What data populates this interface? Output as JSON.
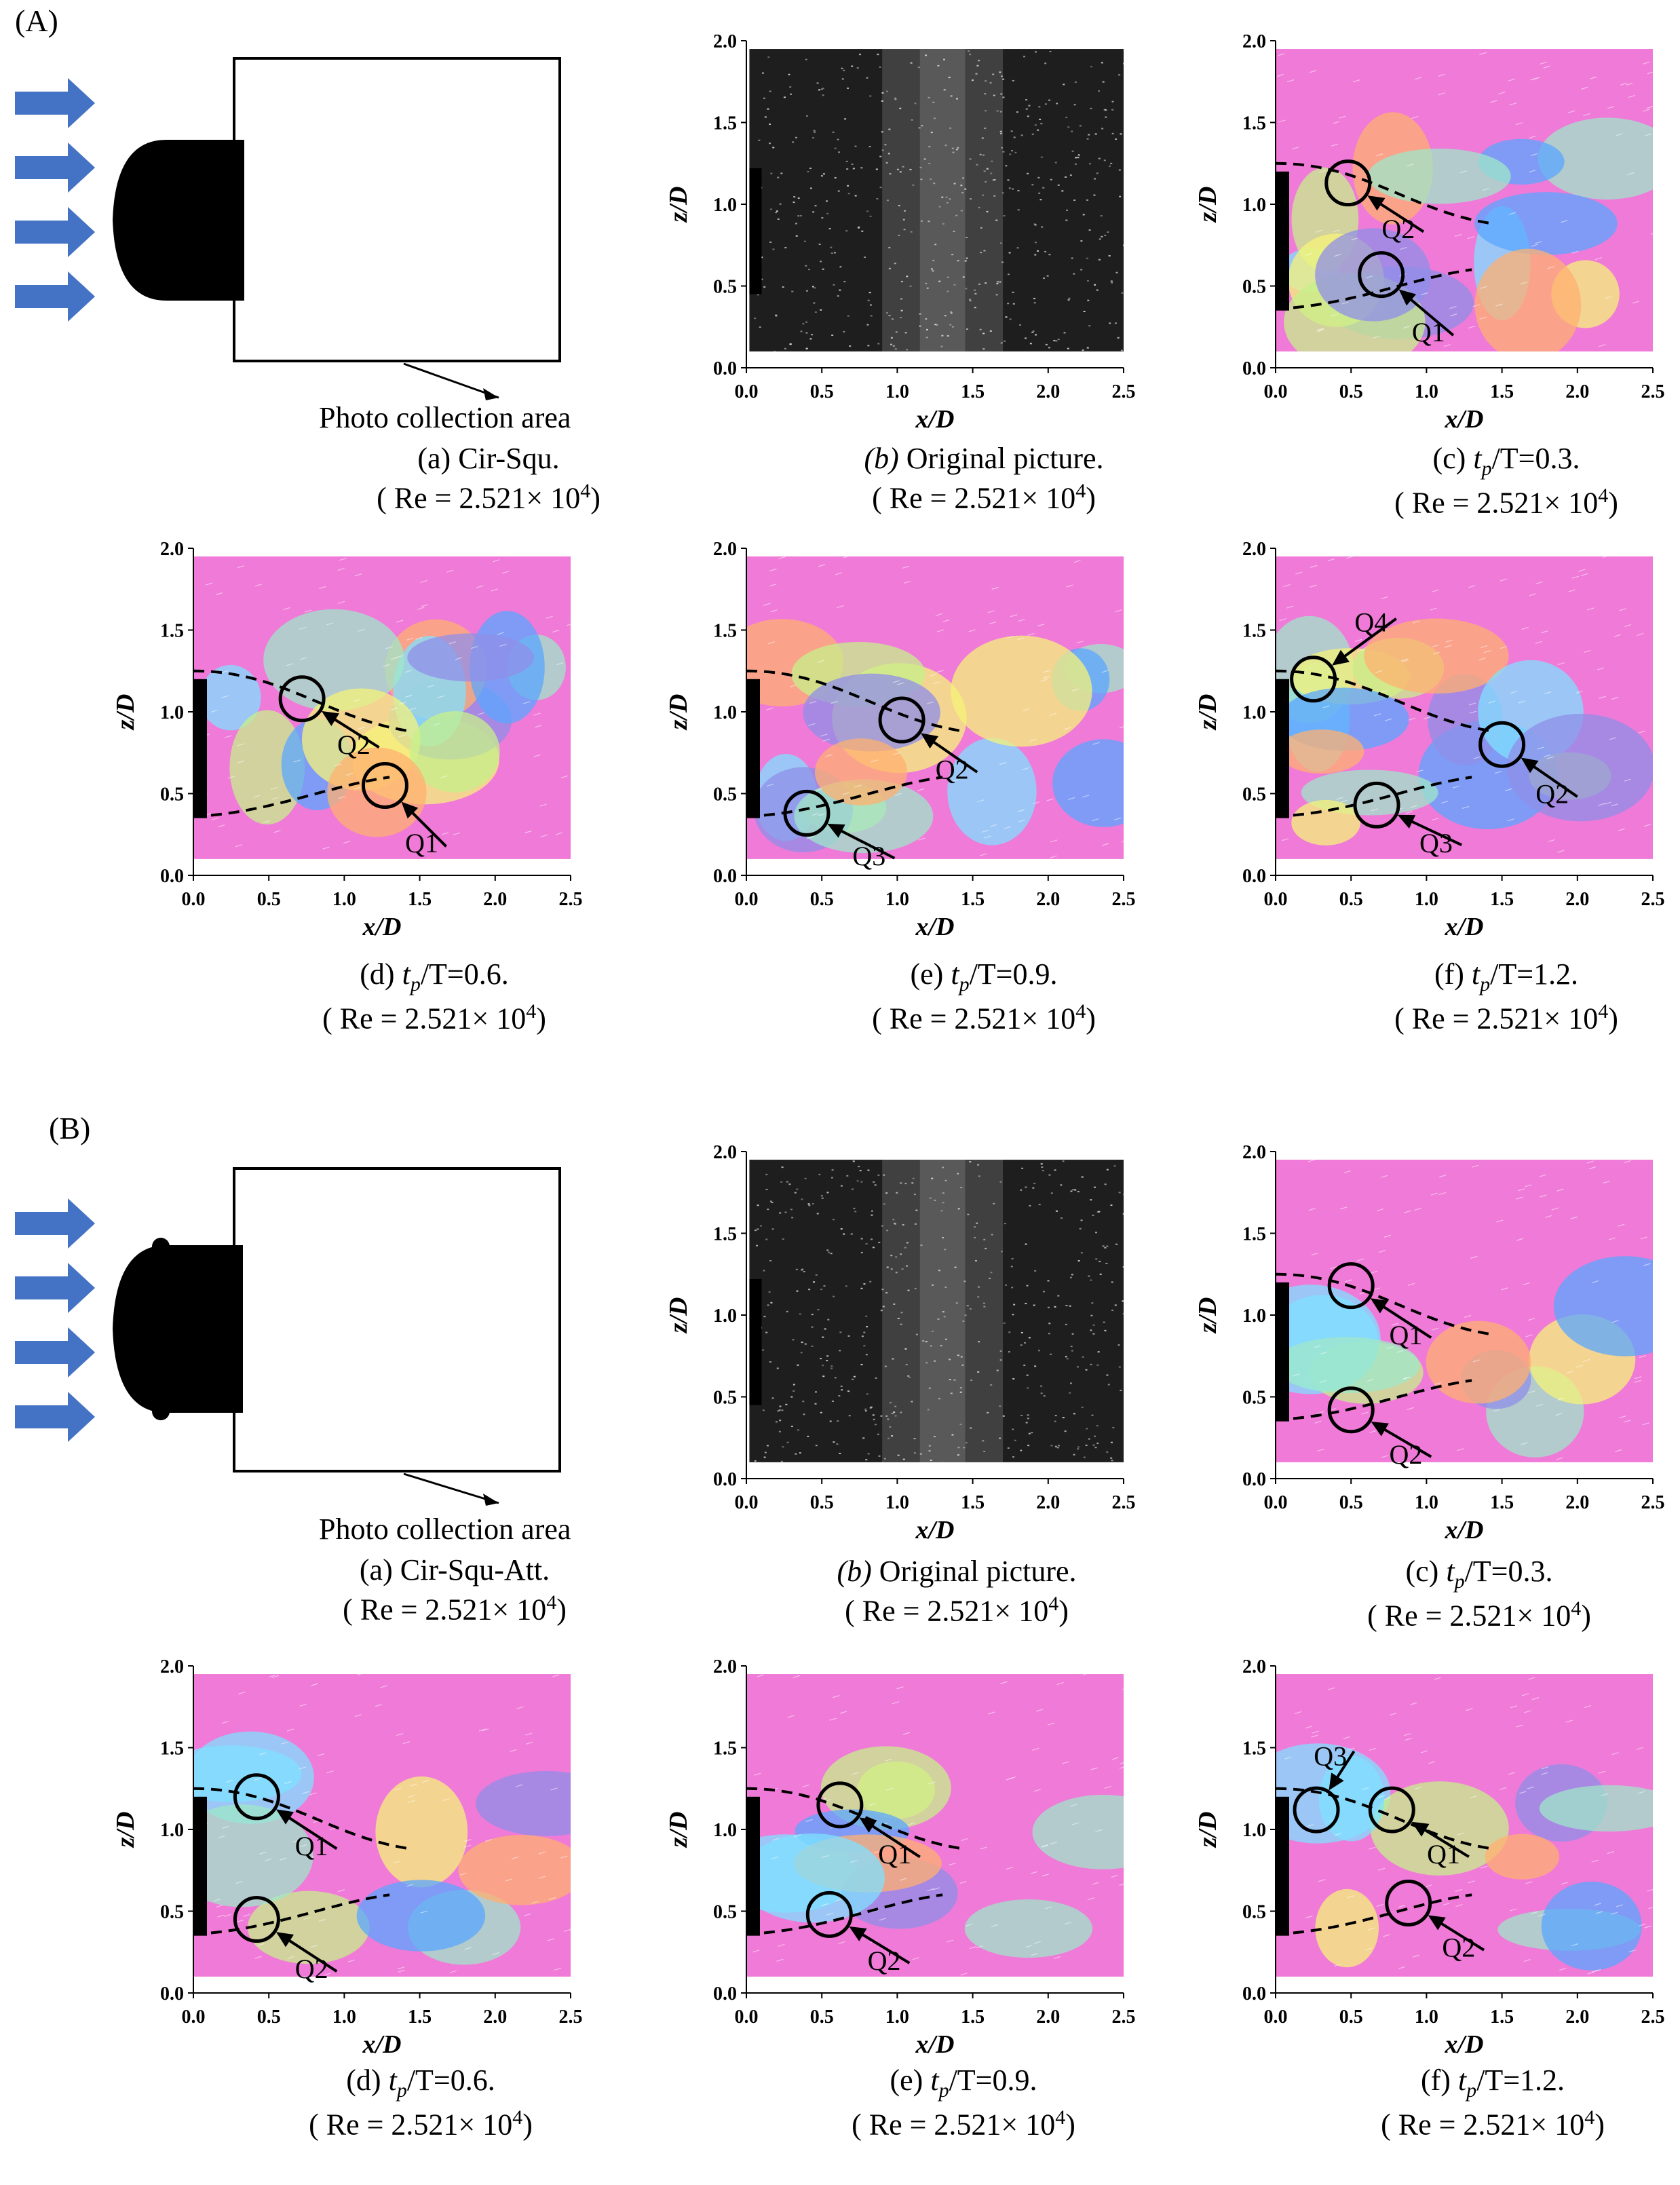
{
  "sectionA": {
    "label": "(A)",
    "photo_area_label": "Photo collection area",
    "captions": [
      {
        "id": "a",
        "prefix": "(a)",
        "text": "Cir-Squ.",
        "re": "( Re = 2.521× 10",
        "exp": "4",
        ")": ")"
      },
      {
        "id": "b",
        "prefix": "(b)",
        "text": "Original picture.",
        "re": "( Re = 2.521× 10",
        "exp": "4"
      },
      {
        "id": "c",
        "prefix": "(c)",
        "tp": "t",
        "sub": "p",
        "text": "/T=0.3.",
        "re": "( Re = 2.521× 10",
        "exp": "4"
      },
      {
        "id": "d",
        "prefix": "(d)",
        "tp": "t",
        "sub": "p",
        "text": "/T=0.6.",
        "re": "( Re = 2.521× 10",
        "exp": "4"
      },
      {
        "id": "e",
        "prefix": "(e)",
        "tp": "t",
        "sub": "p",
        "text": "/T=0.9.",
        "re": "( Re = 2.521× 10",
        "exp": "4"
      },
      {
        "id": "f",
        "prefix": "(f)",
        "tp": "t",
        "sub": "p",
        "text": "/T=1.2.",
        "re": "( Re = 2.521× 10",
        "exp": "4"
      }
    ],
    "panels": [
      {
        "id": "b",
        "kind": "photo"
      },
      {
        "id": "c",
        "kind": "vector",
        "markers": [
          {
            "label": "Q2",
            "x": 0.48,
            "z": 1.13,
            "lx": 0.95,
            "lz": 0.85
          },
          {
            "label": "Q1",
            "x": 0.7,
            "z": 0.57,
            "lx": 1.15,
            "lz": 0.22
          }
        ]
      },
      {
        "id": "d",
        "kind": "vector",
        "markers": [
          {
            "label": "Q2",
            "x": 0.72,
            "z": 1.08,
            "lx": 1.2,
            "lz": 0.8
          },
          {
            "label": "Q1",
            "x": 1.27,
            "z": 0.55,
            "lx": 1.65,
            "lz": 0.2
          }
        ]
      },
      {
        "id": "e",
        "kind": "vector",
        "markers": [
          {
            "label": "Q2",
            "x": 1.03,
            "z": 0.95,
            "lx": 1.5,
            "lz": 0.65
          },
          {
            "label": "Q3",
            "x": 0.4,
            "z": 0.38,
            "lx": 0.95,
            "lz": 0.12
          }
        ]
      },
      {
        "id": "f",
        "kind": "vector",
        "markers": [
          {
            "label": "Q4",
            "x": 0.25,
            "z": 1.2,
            "lx": 0.77,
            "lz": 1.55
          },
          {
            "label": "Q2",
            "x": 1.5,
            "z": 0.8,
            "lx": 1.97,
            "lz": 0.5
          },
          {
            "label": "Q3",
            "x": 0.67,
            "z": 0.43,
            "lx": 1.2,
            "lz": 0.2
          }
        ]
      }
    ]
  },
  "sectionB": {
    "label": "(B)",
    "photo_area_label": "Photo collection area",
    "captions": [
      {
        "id": "a",
        "prefix": "(a)",
        "text": "Cir-Squ-Att.",
        "re": "( Re = 2.521× 10",
        "exp": "4"
      },
      {
        "id": "b",
        "prefix": "(b)",
        "text": "Original picture.",
        "re": "( Re = 2.521× 10",
        "exp": "4"
      },
      {
        "id": "c",
        "prefix": "(c)",
        "tp": "t",
        "sub": "p",
        "text": "/T=0.3.",
        "re": "( Re = 2.521× 10",
        "exp": "4"
      },
      {
        "id": "d",
        "prefix": "(d)",
        "tp": "t",
        "sub": "p",
        "text": "/T=0.6.",
        "re": "( Re = 2.521× 10",
        "exp": "4"
      },
      {
        "id": "e",
        "prefix": "(e)",
        "tp": "t",
        "sub": "p",
        "text": "/T=0.9.",
        "re": "( Re = 2.521× 10",
        "exp": "4"
      },
      {
        "id": "f",
        "prefix": "(f)",
        "tp": "t",
        "sub": "p",
        "text": "/T=1.2.",
        "re": "( Re = 2.521× 10",
        "exp": "4"
      }
    ],
    "panels": [
      {
        "id": "b",
        "kind": "photo"
      },
      {
        "id": "c",
        "kind": "vector",
        "markers": [
          {
            "label": "Q1",
            "x": 0.5,
            "z": 1.18,
            "lx": 1.0,
            "lz": 0.88
          },
          {
            "label": "Q2",
            "x": 0.5,
            "z": 0.42,
            "lx": 1.0,
            "lz": 0.15
          }
        ]
      },
      {
        "id": "d",
        "kind": "vector",
        "markers": [
          {
            "label": "Q1",
            "x": 0.42,
            "z": 1.2,
            "lx": 0.92,
            "lz": 0.9
          },
          {
            "label": "Q2",
            "x": 0.42,
            "z": 0.45,
            "lx": 0.92,
            "lz": 0.15
          }
        ]
      },
      {
        "id": "e",
        "kind": "vector",
        "markers": [
          {
            "label": "Q1",
            "x": 0.62,
            "z": 1.15,
            "lx": 1.12,
            "lz": 0.85
          },
          {
            "label": "Q2",
            "x": 0.55,
            "z": 0.48,
            "lx": 1.05,
            "lz": 0.2
          }
        ]
      },
      {
        "id": "f",
        "kind": "vector",
        "markers": [
          {
            "label": "Q3",
            "x": 0.27,
            "z": 1.12,
            "lx": 0.5,
            "lz": 1.45
          },
          {
            "label": "Q1",
            "x": 0.77,
            "z": 1.12,
            "lx": 1.25,
            "lz": 0.85
          },
          {
            "label": "Q2",
            "x": 0.88,
            "z": 0.55,
            "lx": 1.35,
            "lz": 0.28
          }
        ]
      }
    ]
  },
  "axes": {
    "xlabel": "x/D",
    "zlabel": "z/D",
    "xticks": [
      "0.0",
      "0.5",
      "1.0",
      "1.5",
      "2.0",
      "2.5"
    ],
    "zticks": [
      "0.0",
      "0.5",
      "1.0",
      "1.5",
      "2.0"
    ],
    "xlim": [
      0,
      2.5
    ],
    "zlim": [
      0,
      2.0
    ]
  },
  "colors": {
    "arrow": "#4472c4",
    "background_field": "#f07ad8",
    "photo_bg": "#1e1e1e"
  }
}
